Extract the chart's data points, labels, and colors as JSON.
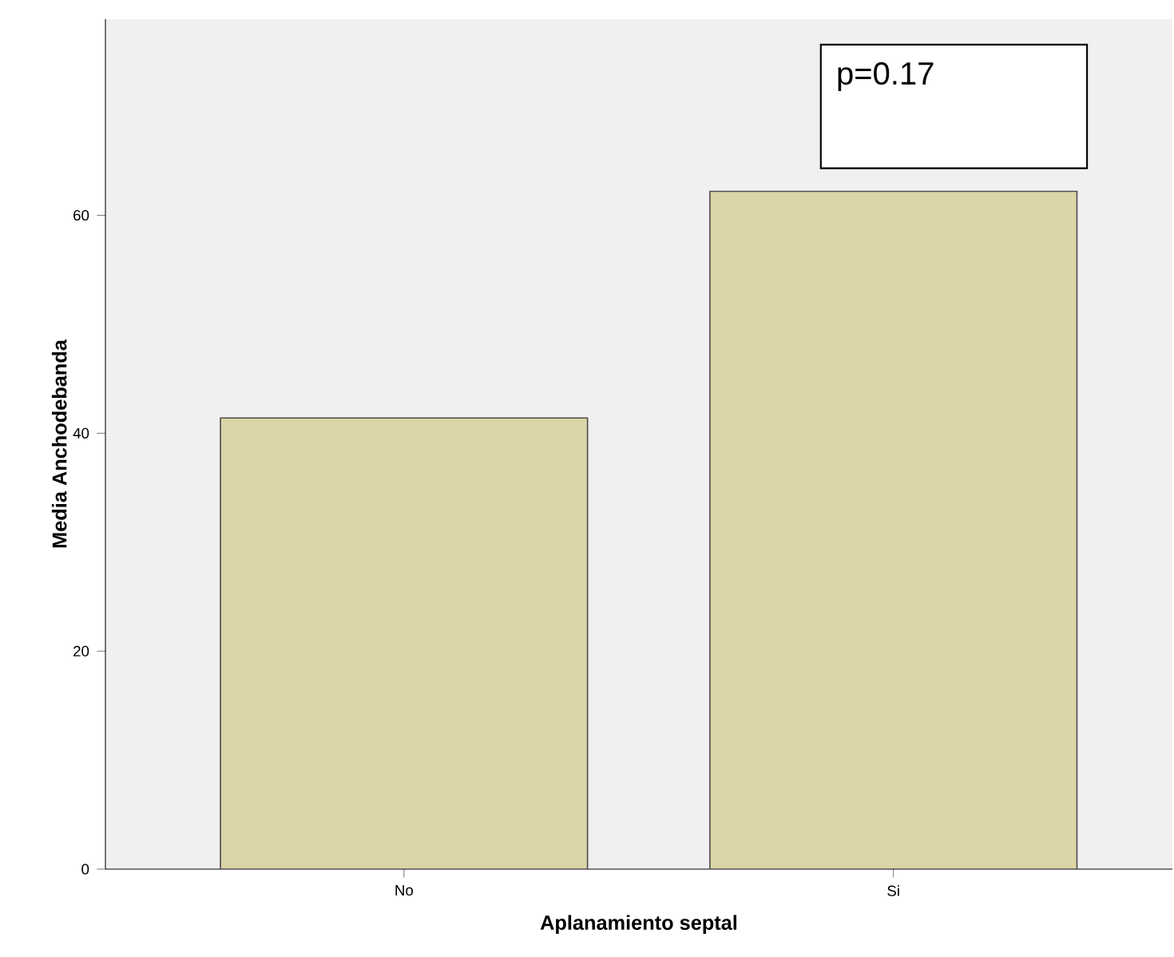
{
  "chart_data": {
    "type": "bar",
    "xlabel": "Aplanamiento septal",
    "ylabel": "Media Anchodebanda",
    "categories": [
      "No",
      "Si"
    ],
    "values": [
      41.4,
      62.2
    ],
    "color": "#dbd5a7",
    "ylim": [
      0,
      78
    ],
    "yticks": [
      0,
      20,
      40,
      60
    ],
    "annotations": [
      "p=0.17"
    ]
  }
}
